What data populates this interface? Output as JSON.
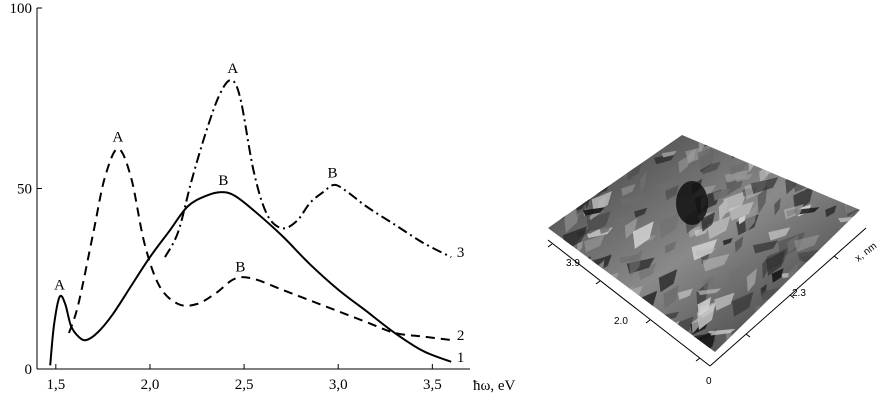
{
  "chart_data": {
    "type": "line",
    "title": "",
    "xlabel": "ħω, eV",
    "ylabel": "",
    "xlim": [
      1.4,
      3.7
    ],
    "ylim": [
      0,
      100
    ],
    "x_ticks": [
      1.5,
      2.0,
      2.5,
      3.0,
      3.5
    ],
    "x_tick_labels": [
      "1,5",
      "2,0",
      "2,5",
      "3,0",
      "3,5"
    ],
    "y_ticks": [
      0,
      50,
      100
    ],
    "y_tick_labels": [
      "0",
      "50",
      "100"
    ],
    "grid": false,
    "series": [
      {
        "name": "1",
        "style": "solid",
        "x": [
          1.47,
          1.49,
          1.52,
          1.55,
          1.58,
          1.62,
          1.66,
          1.72,
          1.8,
          1.9,
          2.0,
          2.1,
          2.2,
          2.3,
          2.38,
          2.45,
          2.55,
          2.7,
          2.85,
          3.0,
          3.15,
          3.3,
          3.45,
          3.6
        ],
        "y": [
          1,
          12,
          20,
          18,
          12,
          9,
          8,
          10,
          15,
          23,
          31,
          38,
          45,
          48,
          49,
          48,
          44,
          37,
          29,
          22,
          16,
          10,
          5,
          2
        ]
      },
      {
        "name": "2",
        "style": "dashed",
        "x": [
          1.57,
          1.62,
          1.7,
          1.76,
          1.83,
          1.9,
          1.97,
          2.05,
          2.15,
          2.25,
          2.35,
          2.45,
          2.55,
          2.7,
          2.85,
          3.0,
          3.15,
          3.3,
          3.45,
          3.6
        ],
        "y": [
          10,
          18,
          38,
          53,
          61,
          53,
          35,
          23,
          18,
          18,
          21,
          25,
          25,
          22,
          19,
          16,
          13,
          10,
          9,
          8
        ]
      },
      {
        "name": "3",
        "style": "dashdot",
        "x": [
          2.08,
          2.15,
          2.22,
          2.3,
          2.37,
          2.43,
          2.48,
          2.55,
          2.62,
          2.7,
          2.78,
          2.85,
          2.92,
          2.98,
          3.05,
          3.15,
          3.3,
          3.45,
          3.6
        ],
        "y": [
          31,
          38,
          52,
          66,
          76,
          80,
          75,
          55,
          43,
          39,
          41,
          46,
          49,
          51,
          49,
          45,
          40,
          35,
          31
        ]
      }
    ],
    "annotations": [
      {
        "text": "A",
        "x": 1.52,
        "y": 22
      },
      {
        "text": "A",
        "x": 1.83,
        "y": 63
      },
      {
        "text": "A",
        "x": 2.44,
        "y": 82
      },
      {
        "text": "B",
        "x": 2.39,
        "y": 51
      },
      {
        "text": "B",
        "x": 2.48,
        "y": 27
      },
      {
        "text": "B",
        "x": 2.97,
        "y": 53
      },
      {
        "text": "1",
        "x": 3.65,
        "y": 2
      },
      {
        "text": "2",
        "x": 3.65,
        "y": 8
      },
      {
        "text": "3",
        "x": 3.65,
        "y": 31
      }
    ]
  },
  "afm": {
    "axis_label_x": "x, nm",
    "tick_labels_left": [
      "3.9"
    ],
    "tick_labels_bottom": [
      "2.0",
      "2.3"
    ],
    "origin_label": "0",
    "colors": {
      "dark": "#1a1a1a",
      "mid": "#6e6e6e",
      "light": "#d0d0d0"
    }
  }
}
